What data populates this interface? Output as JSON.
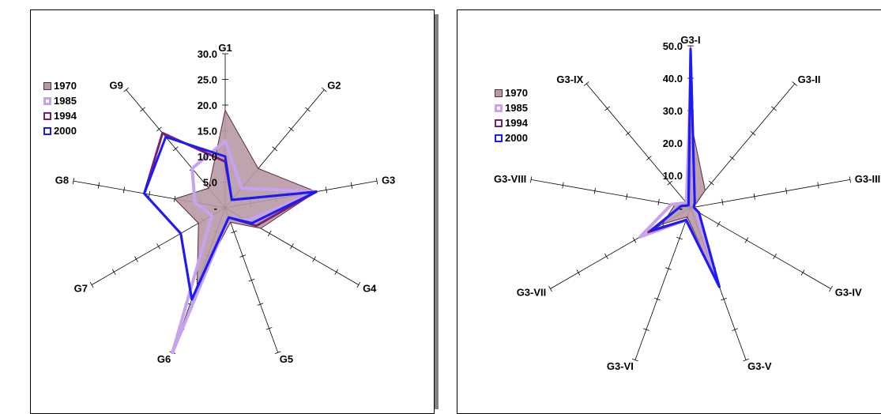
{
  "chart_data": [
    {
      "type": "radar",
      "categories": [
        "G1",
        "G2",
        "G3",
        "G4",
        "G5",
        "G6",
        "G7",
        "G8",
        "G9"
      ],
      "axis_range": [
        0,
        30
      ],
      "tick_labels": [
        "-",
        "5.0",
        "10.0",
        "15.0",
        "20.0",
        "25.0",
        "30.0"
      ],
      "legend_position": "left",
      "series": [
        {
          "name": "1970",
          "values": [
            19.0,
            10.0,
            18.0,
            8.0,
            3.0,
            16.0,
            6.0,
            10.0,
            5.0
          ],
          "color": "#b89aa6"
        },
        {
          "name": "1985",
          "values": [
            13.0,
            5.0,
            18.0,
            5.0,
            2.0,
            30.0,
            3.0,
            6.0,
            10.0
          ],
          "color": "#c7a2f0"
        },
        {
          "name": "1994",
          "values": [
            9.0,
            2.0,
            18.0,
            7.0,
            2.0,
            19.0,
            10.0,
            16.0,
            19.0
          ],
          "color": "#7a1f6e"
        },
        {
          "name": "2000",
          "values": [
            10.0,
            2.0,
            18.0,
            6.0,
            2.0,
            19.0,
            10.0,
            16.0,
            18.0
          ],
          "color": "#1a1aff"
        }
      ]
    },
    {
      "type": "radar",
      "categories": [
        "G3-I",
        "G3-II",
        "G3-III",
        "G3-IV",
        "G3-V",
        "G3-VI",
        "G3-VII",
        "G3-VIII",
        "G3-IX"
      ],
      "axis_range": [
        0,
        50
      ],
      "tick_labels": [
        "-",
        "10.0",
        "20.0",
        "30.0",
        "40.0",
        "50.0"
      ],
      "legend_position": "left",
      "series": [
        {
          "name": "1970",
          "values": [
            27.0,
            7.0,
            1.0,
            2.0,
            25.0,
            3.0,
            10.0,
            5.0,
            2.0
          ],
          "color": "#b89aa6"
        },
        {
          "name": "1985",
          "values": [
            38.0,
            2.0,
            1.0,
            2.0,
            25.0,
            4.0,
            18.0,
            6.0,
            2.0
          ],
          "color": "#c7a2f0"
        },
        {
          "name": "1994",
          "values": [
            49.0,
            2.0,
            1.0,
            3.0,
            26.0,
            4.0,
            15.0,
            3.0,
            1.0
          ],
          "color": "#7a1f6e"
        },
        {
          "name": "2000",
          "values": [
            49.0,
            2.0,
            1.0,
            3.0,
            26.0,
            4.0,
            14.0,
            3.0,
            1.0
          ],
          "color": "#1a1aff"
        }
      ]
    }
  ]
}
